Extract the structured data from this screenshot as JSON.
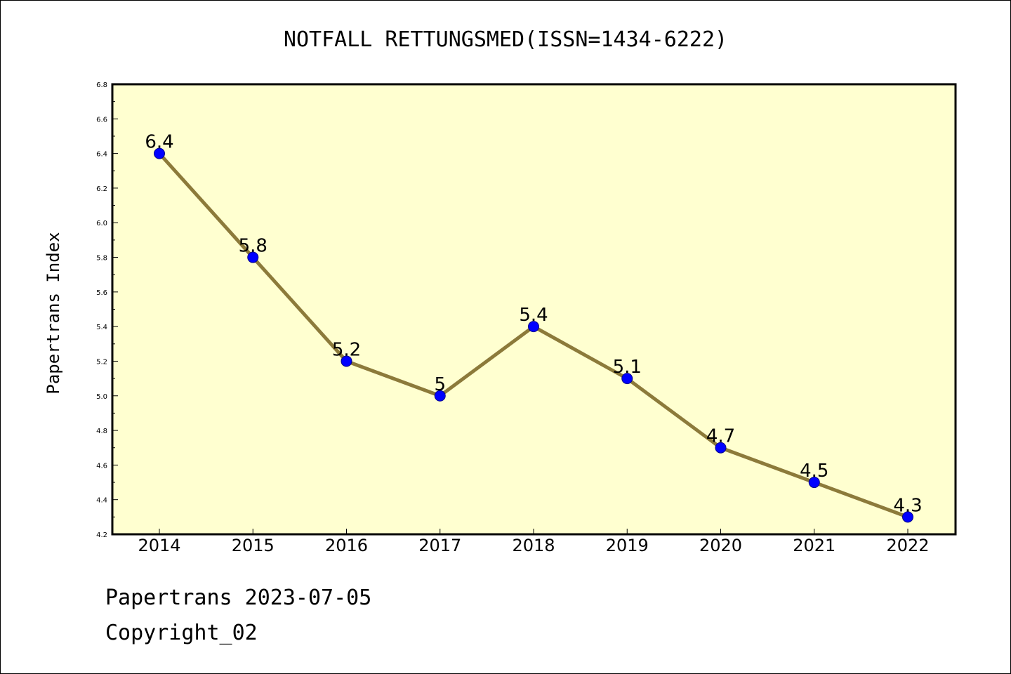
{
  "chart_data": {
    "type": "line",
    "title": "NOTFALL RETTUNGSMED(ISSN=1434-6222)",
    "ylabel": "Papertrans Index",
    "xlabel": "",
    "categories": [
      "2014",
      "2015",
      "2016",
      "2017",
      "2018",
      "2019",
      "2020",
      "2021",
      "2022"
    ],
    "series": [
      {
        "values": [
          6.4,
          5.8,
          5.2,
          5.0,
          5.4,
          5.1,
          4.7,
          4.5,
          4.3
        ],
        "labels": [
          "6.4",
          "5.8",
          "5.2",
          "5",
          "5.4",
          "5.1",
          "4.7",
          "4.5",
          "4.3"
        ]
      }
    ],
    "ylim": [
      4.2,
      6.8
    ],
    "yticks": [
      "4.2",
      "4.4",
      "4.6",
      "4.8",
      "5.0",
      "5.2",
      "5.4",
      "5.6",
      "5.8",
      "6.0",
      "6.2",
      "6.4",
      "6.6",
      "6.8"
    ],
    "grid": false,
    "colors": {
      "plot_background": "#ffffd0",
      "line": "#8c7a3a",
      "marker": "#0000ff"
    }
  },
  "footer": {
    "line1": "Papertrans 2023-07-05",
    "line2": "Copyright_02"
  }
}
